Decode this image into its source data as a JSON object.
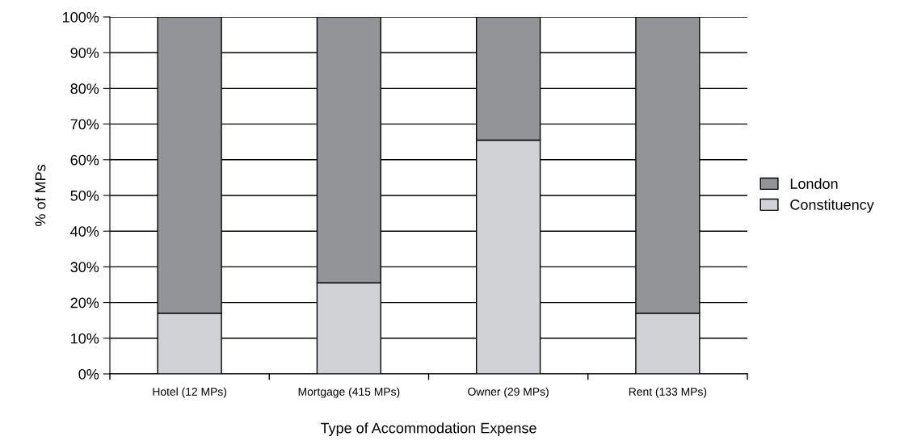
{
  "chart_data": {
    "type": "bar",
    "stacked": true,
    "xlabel": "Type of Accommodation Expense",
    "ylabel": "% of MPs",
    "categories": [
      "Hotel (12 MPs)",
      "Mortgage (415 MPs)",
      "Owner (29 MPs)",
      "Rent (133 MPs)"
    ],
    "series": [
      {
        "name": "Constituency",
        "color": "#d1d2d6",
        "values": [
          17,
          25.5,
          65.5,
          17
        ]
      },
      {
        "name": "London",
        "color": "#939498",
        "values": [
          83,
          74.5,
          34.5,
          83
        ]
      }
    ],
    "ylim": [
      0,
      100
    ],
    "yticks": [
      {
        "value": 0,
        "label": "0%"
      },
      {
        "value": 10,
        "label": "10%"
      },
      {
        "value": 20,
        "label": "20%"
      },
      {
        "value": 30,
        "label": "30%"
      },
      {
        "value": 40,
        "label": "40%"
      },
      {
        "value": 50,
        "label": "50%"
      },
      {
        "value": 60,
        "label": "60%"
      },
      {
        "value": 70,
        "label": "70%"
      },
      {
        "value": 80,
        "label": "80%"
      },
      {
        "value": 90,
        "label": "90%"
      },
      {
        "value": 100,
        "label": "100%"
      }
    ],
    "grid": "y",
    "legend": "right"
  }
}
